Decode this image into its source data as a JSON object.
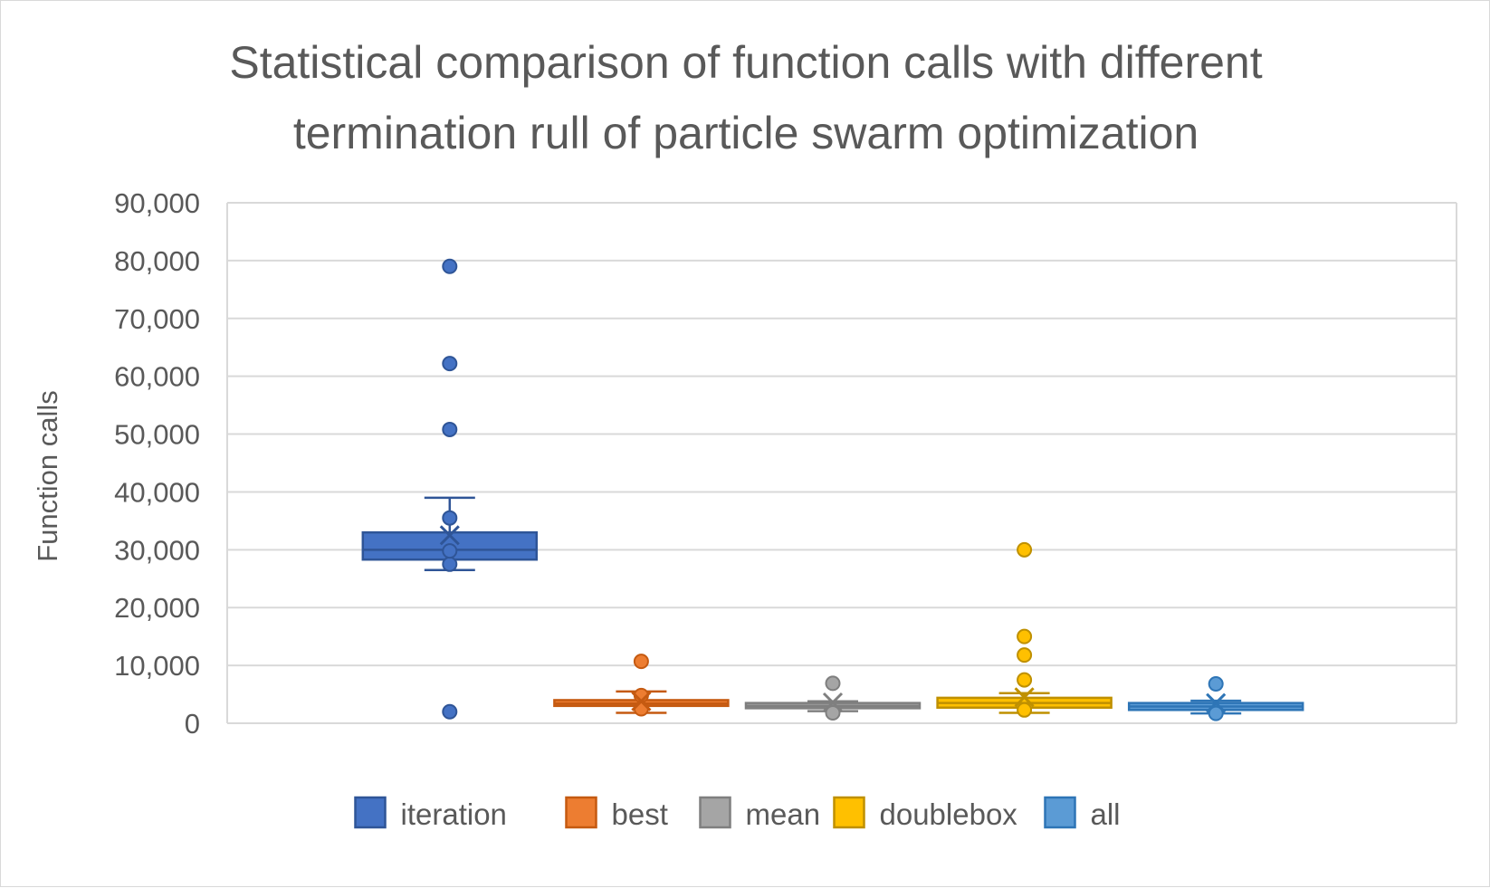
{
  "chart_data": {
    "type": "box",
    "title_lines": [
      "Statistical comparison of function calls with different",
      "termination rull of particle swarm optimization"
    ],
    "xlabel": "",
    "ylabel": "Function calls",
    "ylim": [
      0,
      90000
    ],
    "yticks": [
      0,
      10000,
      20000,
      30000,
      40000,
      50000,
      60000,
      70000,
      80000,
      90000
    ],
    "ytick_labels": [
      "0",
      "10,000",
      "20,000",
      "30,000",
      "40,000",
      "50,000",
      "60,000",
      "70,000",
      "80,000",
      "90,000"
    ],
    "grid": true,
    "legend_position": "bottom",
    "series": [
      {
        "name": "iteration",
        "fill": "#4472c4",
        "stroke": "#2f5597",
        "whisker_low": 26500,
        "q1": 28300,
        "median": 30000,
        "q3": 33000,
        "whisker_high": 39000,
        "mean": 32500,
        "points": [
          27500,
          29800,
          35500,
          50800,
          62200,
          79000,
          2000
        ]
      },
      {
        "name": "best",
        "fill": "#ed7d31",
        "stroke": "#c55a11",
        "whisker_low": 1800,
        "q1": 3000,
        "median": 3400,
        "q3": 4000,
        "whisker_high": 5500,
        "mean": 3800,
        "points": [
          2500,
          4800,
          10700
        ]
      },
      {
        "name": "mean",
        "fill": "#a5a5a5",
        "stroke": "#7f7f7f",
        "whisker_low": 2100,
        "q1": 2600,
        "median": 3000,
        "q3": 3500,
        "whisker_high": 3800,
        "mean": 3600,
        "points": [
          1800,
          6900
        ]
      },
      {
        "name": "doublebox",
        "fill": "#ffc000",
        "stroke": "#bf9000",
        "whisker_low": 1800,
        "q1": 2700,
        "median": 3500,
        "q3": 4400,
        "whisker_high": 5200,
        "mean": 4500,
        "points": [
          2300,
          7500,
          11800,
          15000,
          30000
        ]
      },
      {
        "name": "all",
        "fill": "#5b9bd5",
        "stroke": "#2e75b6",
        "whisker_low": 1700,
        "q1": 2300,
        "median": 2900,
        "q3": 3500,
        "whisker_high": 3900,
        "mean": 3500,
        "points": [
          1700,
          6800
        ]
      }
    ]
  }
}
